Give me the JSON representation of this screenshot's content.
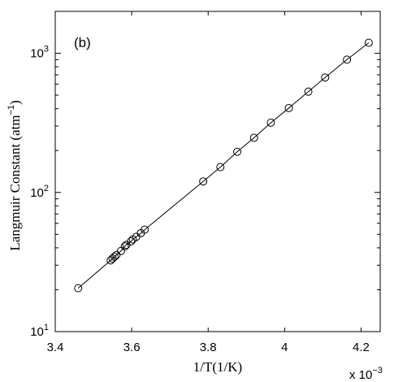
{
  "chart_data": {
    "type": "line",
    "panel_label": "(b)",
    "xlabel": "1/T(1/K)",
    "ylabel_main": "Langmuir Constant (atm",
    "ylabel_sup": "−1",
    "ylabel_close": ")",
    "x_multiplier_base": "x 10",
    "x_multiplier_exp": "−3",
    "xlim": [
      3.4,
      4.25
    ],
    "ylim": [
      10,
      2000
    ],
    "yscale": "log",
    "grid": false,
    "x_ticks": [
      {
        "value": 3.4,
        "label": "3.4"
      },
      {
        "value": 3.6,
        "label": "3.6"
      },
      {
        "value": 3.8,
        "label": "3.8"
      },
      {
        "value": 4.0,
        "label": "4"
      },
      {
        "value": 4.2,
        "label": "4.2"
      }
    ],
    "y_ticks": [
      {
        "value": 10,
        "base": "10",
        "exp": "1"
      },
      {
        "value": 100,
        "base": "10",
        "exp": "2"
      },
      {
        "value": 1000,
        "base": "10",
        "exp": "3"
      }
    ],
    "series": [
      {
        "marker": "circle",
        "line": true,
        "x": [
          3.46,
          3.545,
          3.55,
          3.555,
          3.56,
          3.572,
          3.582,
          3.586,
          3.598,
          3.603,
          3.612,
          3.624,
          3.634,
          3.787,
          3.832,
          3.876,
          3.92,
          3.964,
          4.011,
          4.062,
          4.106,
          4.163,
          4.22
        ],
        "y": [
          20.5,
          32.5,
          33.5,
          34.5,
          35.5,
          38,
          41,
          42,
          44.5,
          46,
          48,
          51,
          54,
          120,
          152,
          196,
          247,
          317,
          404,
          530,
          670,
          900,
          1190
        ]
      }
    ]
  }
}
